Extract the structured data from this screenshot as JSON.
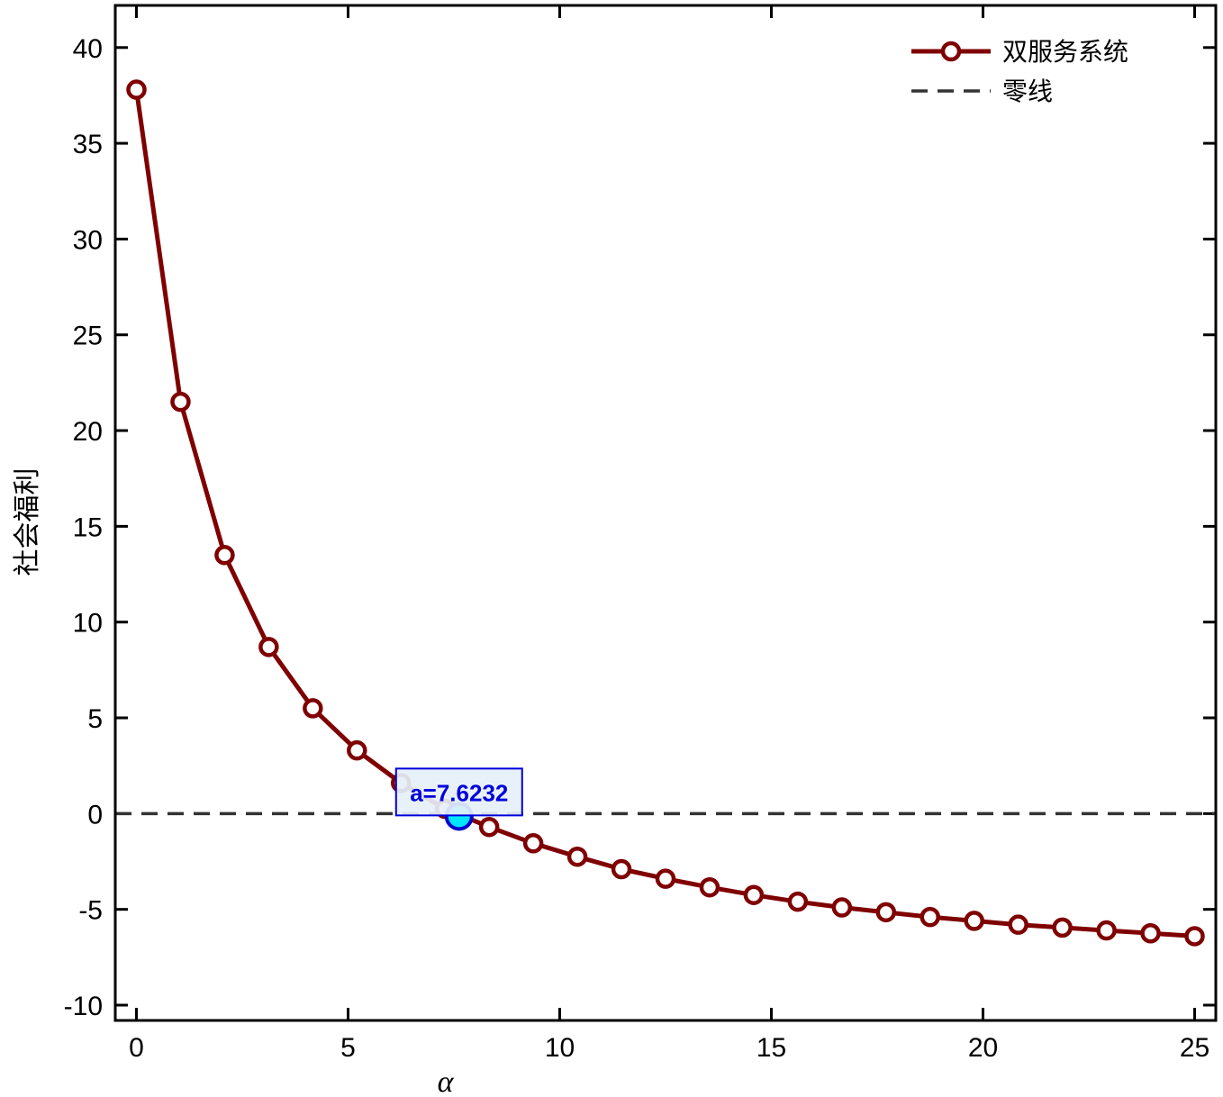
{
  "chart_data": {
    "type": "line",
    "title": "",
    "xlabel": "α",
    "ylabel": "社会福利",
    "xlim": [
      -0.5,
      25.5
    ],
    "ylim": [
      -10.8,
      42.2
    ],
    "xticks": [
      0,
      5,
      10,
      15,
      20,
      25
    ],
    "yticks": [
      -10,
      -5,
      0,
      5,
      10,
      15,
      20,
      25,
      30,
      35,
      40
    ],
    "grid": false,
    "legend_position": "top-right",
    "series": [
      {
        "name": "双服务系统",
        "color": "#7f0000",
        "marker": "circle-open",
        "style": "solid",
        "x": [
          0,
          1.0417,
          2.0833,
          3.125,
          4.1667,
          5.2083,
          6.25,
          7.2917,
          8.3333,
          9.375,
          10.4167,
          11.4583,
          12.5,
          13.5417,
          14.5833,
          15.625,
          16.6667,
          17.7083,
          18.75,
          19.7917,
          20.8333,
          21.875,
          22.9167,
          23.9583,
          25
        ],
        "y": [
          37.8,
          21.5,
          13.5,
          8.7,
          5.5,
          3.3,
          1.6,
          0.25,
          -0.7,
          -1.55,
          -2.25,
          -2.9,
          -3.4,
          -3.85,
          -4.25,
          -4.6,
          -4.9,
          -5.15,
          -5.4,
          -5.6,
          -5.8,
          -5.95,
          -6.1,
          -6.25,
          -6.4
        ]
      },
      {
        "name": "零线",
        "color": "#333333",
        "style": "dashed",
        "x": [
          -0.5,
          25.5
        ],
        "y": [
          0,
          0
        ]
      }
    ],
    "annotations": [
      {
        "text": "a=7.6232",
        "x": 7.6232,
        "y": 0,
        "text_color": "#0000dd",
        "box_fill": "#e6f0fa",
        "box_border": "#0000dd",
        "marker_fill": "#00e5ff",
        "marker_edge": "#0000cc"
      }
    ]
  }
}
